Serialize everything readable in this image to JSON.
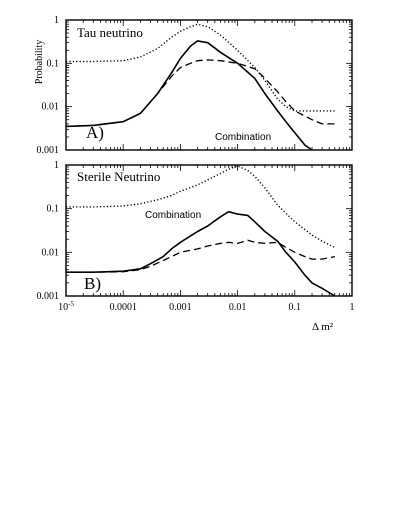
{
  "chart_data": [
    {
      "type": "line",
      "panel_label": "A)",
      "title": "Tau neutrino",
      "ylabel": "Probability",
      "xlabel": "",
      "xscale": "log",
      "yscale": "log",
      "xlim": [
        1e-05,
        1
      ],
      "ylim": [
        0.001,
        1
      ],
      "x_tick_labels": [],
      "y_tick_labels": [
        "1",
        "0.1",
        "0.01",
        "0.001"
      ],
      "annotations": [
        {
          "text": "Combination",
          "near_series": "solid"
        }
      ],
      "series": [
        {
          "style": "dotted",
          "x": [
            1e-05,
            3e-05,
            0.0001,
            0.0002,
            0.0004,
            0.0007,
            0.001,
            0.0015,
            0.002,
            0.003,
            0.005,
            0.01,
            0.02,
            0.03,
            0.05,
            0.07,
            0.1,
            0.2,
            0.3,
            0.5
          ],
          "y": [
            0.11,
            0.11,
            0.115,
            0.14,
            0.22,
            0.4,
            0.55,
            0.7,
            0.8,
            0.7,
            0.45,
            0.2,
            0.08,
            0.04,
            0.015,
            0.01,
            0.008,
            0.008,
            0.008,
            0.008
          ]
        },
        {
          "style": "solid",
          "x": [
            1e-05,
            3e-05,
            0.0001,
            0.0002,
            0.0004,
            0.0007,
            0.001,
            0.0015,
            0.002,
            0.003,
            0.005,
            0.01,
            0.02,
            0.03,
            0.05,
            0.07,
            0.1,
            0.15,
            0.2
          ],
          "y": [
            0.0035,
            0.0037,
            0.0045,
            0.007,
            0.02,
            0.06,
            0.13,
            0.25,
            0.33,
            0.3,
            0.18,
            0.1,
            0.045,
            0.02,
            0.008,
            0.0045,
            0.0025,
            0.0013,
            0.001
          ]
        },
        {
          "style": "dashed",
          "x": [
            1e-05,
            3e-05,
            0.0001,
            0.0002,
            0.0004,
            0.0007,
            0.001,
            0.0015,
            0.002,
            0.003,
            0.005,
            0.01,
            0.02,
            0.03,
            0.05,
            0.07,
            0.1,
            0.2,
            0.3,
            0.5
          ],
          "y": [
            0.0035,
            0.0037,
            0.0045,
            0.007,
            0.02,
            0.05,
            0.08,
            0.1,
            0.115,
            0.12,
            0.115,
            0.1,
            0.075,
            0.045,
            0.022,
            0.013,
            0.008,
            0.005,
            0.004,
            0.004
          ]
        }
      ]
    },
    {
      "type": "line",
      "panel_label": "B)",
      "title": "Sterile Neutrino",
      "ylabel": "",
      "xlabel": "Δ  m²",
      "xscale": "log",
      "yscale": "log",
      "xlim": [
        1e-05,
        1
      ],
      "ylim": [
        0.001,
        1
      ],
      "x_tick_labels": [
        {
          "base": "10",
          "exp": "-5",
          "x": 1e-05
        },
        {
          "text": "0.0001",
          "x": 0.0001
        },
        {
          "text": "0.001",
          "x": 0.001
        },
        {
          "text": "0.01",
          "x": 0.01
        },
        {
          "text": "0.1",
          "x": 0.1
        },
        {
          "text": "1",
          "x": 1
        }
      ],
      "y_tick_labels": [
        "1",
        "0.1",
        "0.01",
        "0.001"
      ],
      "annotations": [
        {
          "text": "Combination",
          "near_series": "solid"
        }
      ],
      "series": [
        {
          "style": "dotted",
          "x": [
            1e-05,
            3e-05,
            0.0001,
            0.0002,
            0.0004,
            0.0007,
            0.001,
            0.002,
            0.004,
            0.007,
            0.01,
            0.015,
            0.02,
            0.03,
            0.05,
            0.1,
            0.2,
            0.3,
            0.5
          ],
          "y": [
            0.11,
            0.11,
            0.115,
            0.13,
            0.16,
            0.2,
            0.25,
            0.35,
            0.55,
            0.8,
            0.95,
            0.75,
            0.55,
            0.3,
            0.12,
            0.05,
            0.025,
            0.018,
            0.013
          ]
        },
        {
          "style": "solid",
          "x": [
            1e-05,
            3e-05,
            0.0001,
            0.0002,
            0.0003,
            0.0005,
            0.0007,
            0.001,
            0.002,
            0.003,
            0.005,
            0.007,
            0.01,
            0.015,
            0.02,
            0.03,
            0.05,
            0.07,
            0.1,
            0.15,
            0.2,
            0.3,
            0.5
          ],
          "y": [
            0.0035,
            0.0035,
            0.0037,
            0.0042,
            0.0055,
            0.008,
            0.012,
            0.017,
            0.03,
            0.04,
            0.065,
            0.085,
            0.075,
            0.07,
            0.05,
            0.03,
            0.018,
            0.01,
            0.006,
            0.003,
            0.002,
            0.0015,
            0.001
          ]
        },
        {
          "style": "dashed",
          "x": [
            1e-05,
            3e-05,
            0.0001,
            0.0002,
            0.0003,
            0.0005,
            0.0007,
            0.001,
            0.002,
            0.003,
            0.005,
            0.007,
            0.01,
            0.015,
            0.02,
            0.03,
            0.05,
            0.07,
            0.1,
            0.15,
            0.2,
            0.3,
            0.5
          ],
          "y": [
            0.0035,
            0.0035,
            0.0036,
            0.004,
            0.0048,
            0.0065,
            0.008,
            0.01,
            0.012,
            0.014,
            0.016,
            0.017,
            0.016,
            0.019,
            0.017,
            0.016,
            0.017,
            0.013,
            0.01,
            0.008,
            0.007,
            0.007,
            0.008
          ]
        }
      ]
    }
  ]
}
